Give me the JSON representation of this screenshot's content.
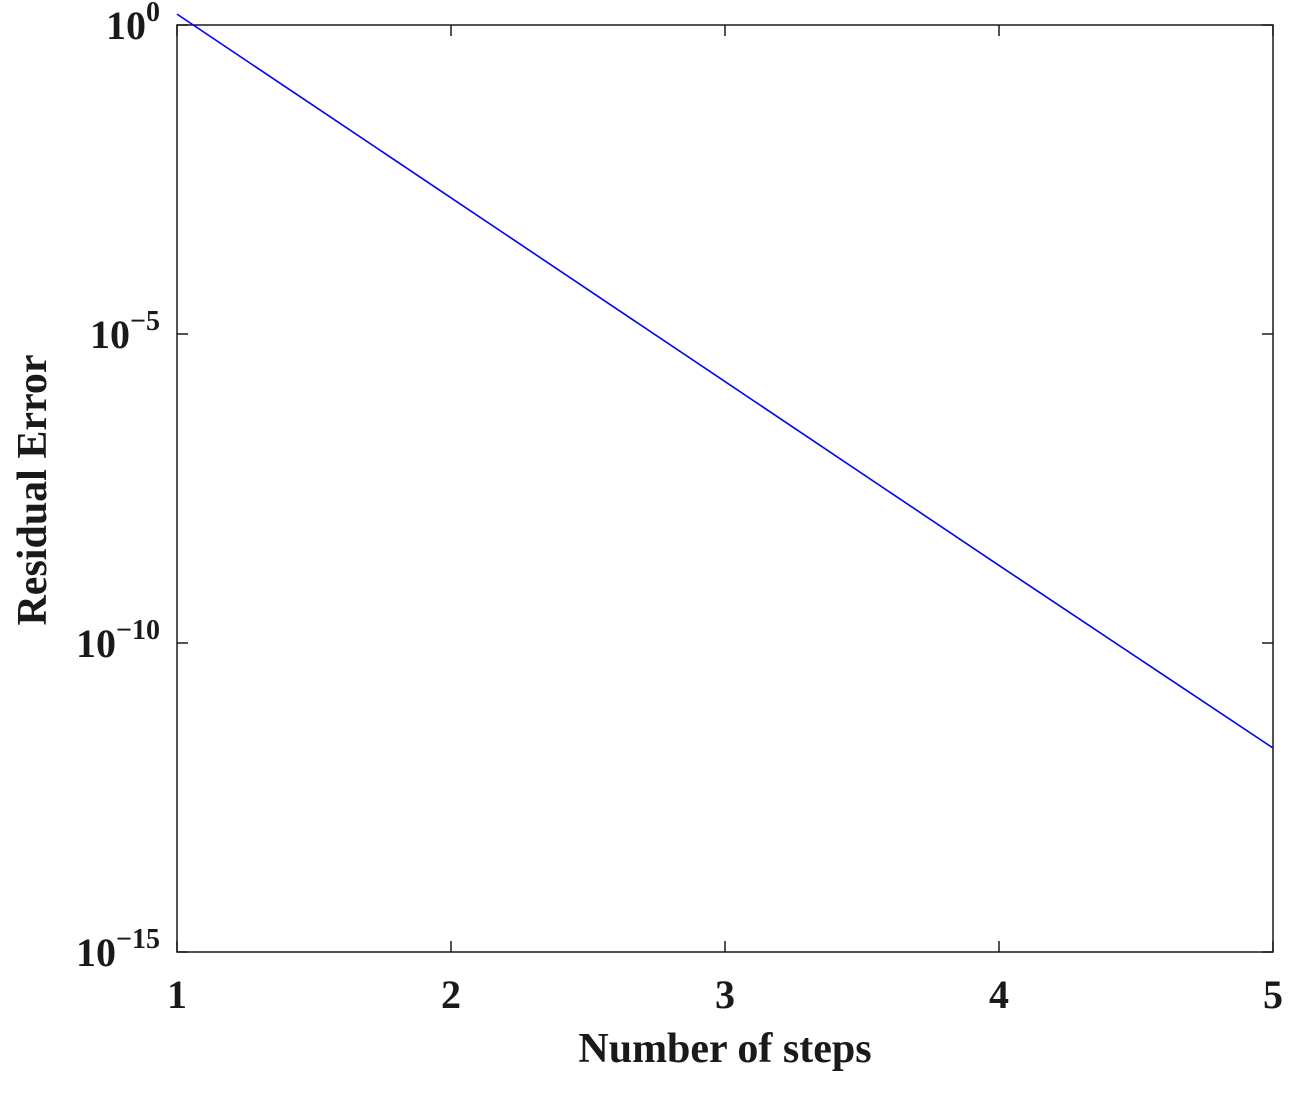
{
  "chart_data": {
    "type": "line",
    "title": "",
    "xlabel": "Number of steps",
    "ylabel": "Residual Error",
    "xlim": [
      1,
      5
    ],
    "ylim": [
      1e-15,
      1.0
    ],
    "yscale": "log",
    "grid": false,
    "x_ticks": [
      1,
      2,
      3,
      4,
      5
    ],
    "y_ticks": [
      {
        "value": 1.0,
        "base": "10",
        "exp": "0"
      },
      {
        "value": 1e-05,
        "base": "10",
        "exp": "−5"
      },
      {
        "value": 1e-10,
        "base": "10",
        "exp": "−10"
      },
      {
        "value": 1e-15,
        "base": "10",
        "exp": "−15"
      }
    ],
    "series": [
      {
        "color": "#0000ff",
        "x": [
          1,
          2,
          3,
          4,
          5
        ],
        "y": [
          1.5,
          0.0016,
          1.7e-06,
          1.8e-09,
          2e-12
        ]
      }
    ]
  }
}
